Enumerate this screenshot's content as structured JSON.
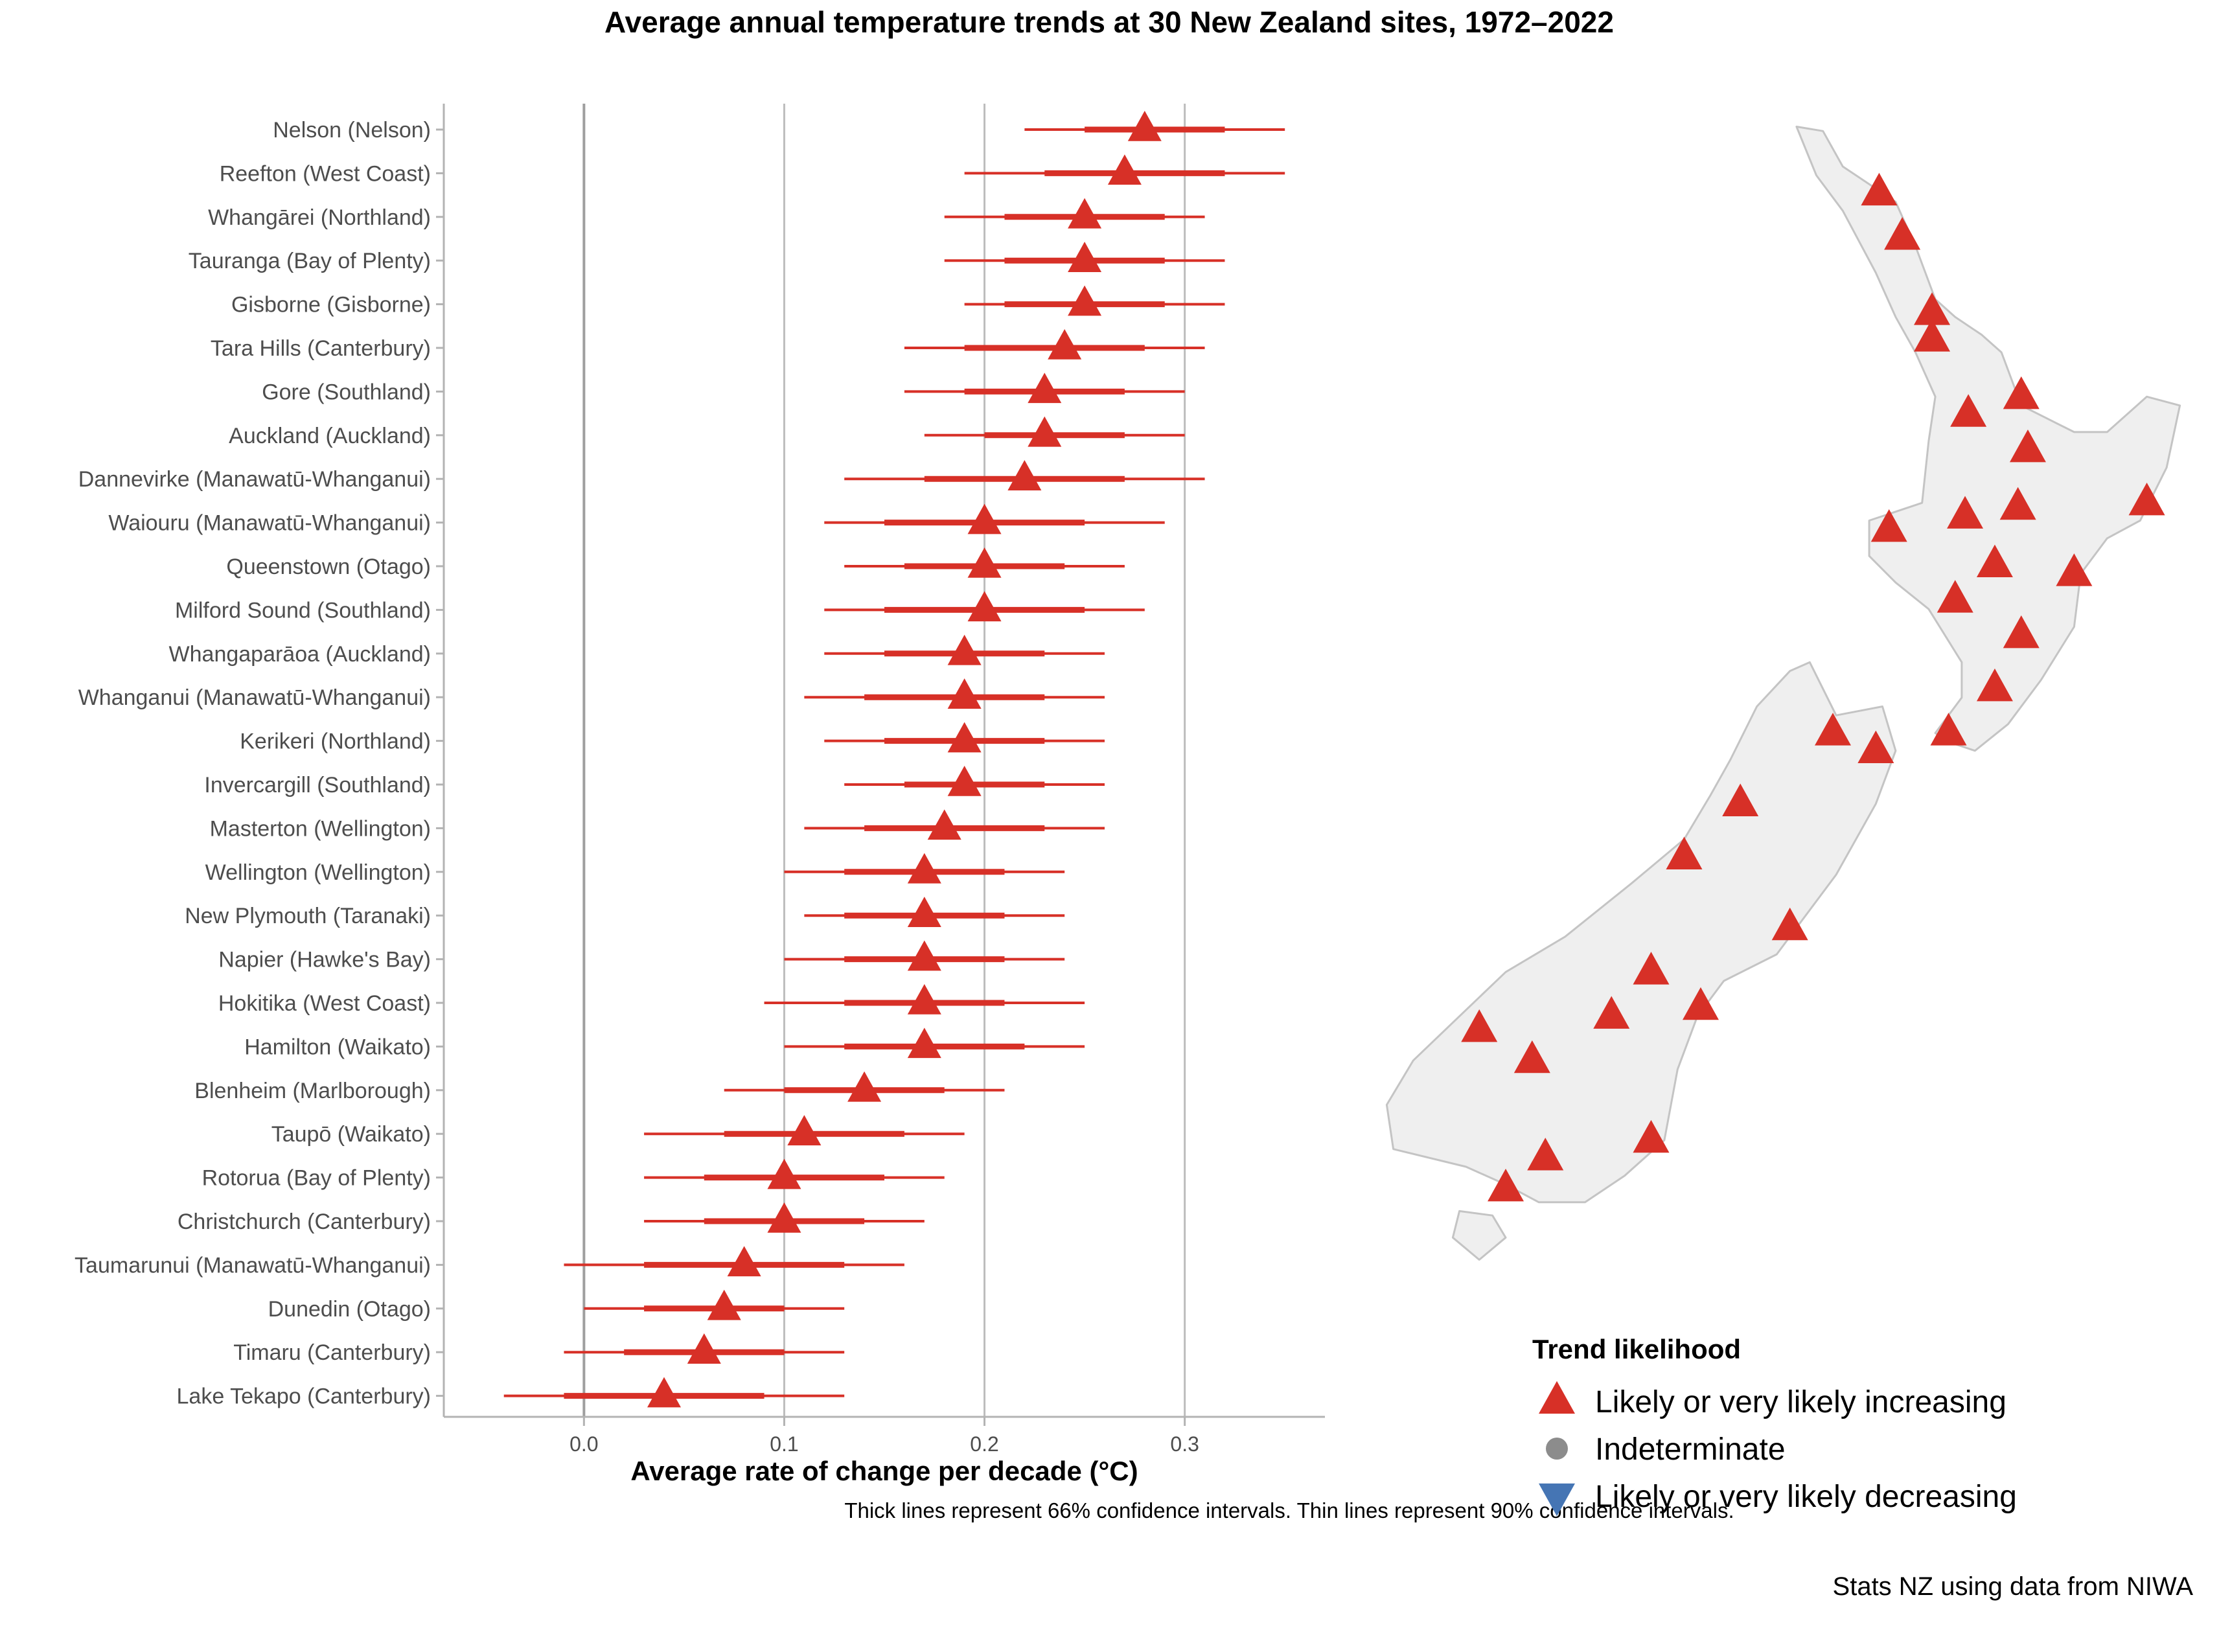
{
  "chart_data": {
    "type": "scatter",
    "title": "Average annual temperature trends at 30 New Zealand sites, 1972–2022",
    "xlabel": "Average rate of change per decade (°C)",
    "xlim": [
      -0.07,
      0.37
    ],
    "xticks": [
      "0.0",
      "0.1",
      "0.2",
      "0.3"
    ],
    "xtick_values": [
      0.0,
      0.1,
      0.2,
      0.3
    ],
    "caption": "Thick lines represent 66% confidence intervals. Thin lines represent 90% confidence intervals.",
    "grid": true,
    "colors": {
      "increasing": "#d73027",
      "indeterminate": "#8c8c8c",
      "decreasing": "#4575b4",
      "grid": "#bdbdbd",
      "map_fill": "#efefef",
      "map_stroke": "#c4c4c4"
    },
    "sites": [
      {
        "label": "Nelson (Nelson)",
        "trend": 0.28,
        "ci66": [
          0.25,
          0.32
        ],
        "ci90": [
          0.22,
          0.35
        ],
        "likelihood": "increasing"
      },
      {
        "label": "Reefton (West Coast)",
        "trend": 0.27,
        "ci66": [
          0.23,
          0.32
        ],
        "ci90": [
          0.19,
          0.35
        ],
        "likelihood": "increasing"
      },
      {
        "label": "Whangārei (Northland)",
        "trend": 0.25,
        "ci66": [
          0.21,
          0.29
        ],
        "ci90": [
          0.18,
          0.31
        ],
        "likelihood": "increasing"
      },
      {
        "label": "Tauranga (Bay of Plenty)",
        "trend": 0.25,
        "ci66": [
          0.21,
          0.29
        ],
        "ci90": [
          0.18,
          0.32
        ],
        "likelihood": "increasing"
      },
      {
        "label": "Gisborne (Gisborne)",
        "trend": 0.25,
        "ci66": [
          0.21,
          0.29
        ],
        "ci90": [
          0.19,
          0.32
        ],
        "likelihood": "increasing"
      },
      {
        "label": "Tara Hills (Canterbury)",
        "trend": 0.24,
        "ci66": [
          0.19,
          0.28
        ],
        "ci90": [
          0.16,
          0.31
        ],
        "likelihood": "increasing"
      },
      {
        "label": "Gore (Southland)",
        "trend": 0.23,
        "ci66": [
          0.19,
          0.27
        ],
        "ci90": [
          0.16,
          0.3
        ],
        "likelihood": "increasing"
      },
      {
        "label": "Auckland (Auckland)",
        "trend": 0.23,
        "ci66": [
          0.2,
          0.27
        ],
        "ci90": [
          0.17,
          0.3
        ],
        "likelihood": "increasing"
      },
      {
        "label": "Dannevirke (Manawatū-Whanganui)",
        "trend": 0.22,
        "ci66": [
          0.17,
          0.27
        ],
        "ci90": [
          0.13,
          0.31
        ],
        "likelihood": "increasing"
      },
      {
        "label": "Waiouru (Manawatū-Whanganui)",
        "trend": 0.2,
        "ci66": [
          0.15,
          0.25
        ],
        "ci90": [
          0.12,
          0.29
        ],
        "likelihood": "increasing"
      },
      {
        "label": "Queenstown (Otago)",
        "trend": 0.2,
        "ci66": [
          0.16,
          0.24
        ],
        "ci90": [
          0.13,
          0.27
        ],
        "likelihood": "increasing"
      },
      {
        "label": "Milford Sound (Southland)",
        "trend": 0.2,
        "ci66": [
          0.15,
          0.25
        ],
        "ci90": [
          0.12,
          0.28
        ],
        "likelihood": "increasing"
      },
      {
        "label": "Whangaparāoa (Auckland)",
        "trend": 0.19,
        "ci66": [
          0.15,
          0.23
        ],
        "ci90": [
          0.12,
          0.26
        ],
        "likelihood": "increasing"
      },
      {
        "label": "Whanganui (Manawatū-Whanganui)",
        "trend": 0.19,
        "ci66": [
          0.14,
          0.23
        ],
        "ci90": [
          0.11,
          0.26
        ],
        "likelihood": "increasing"
      },
      {
        "label": "Kerikeri (Northland)",
        "trend": 0.19,
        "ci66": [
          0.15,
          0.23
        ],
        "ci90": [
          0.12,
          0.26
        ],
        "likelihood": "increasing"
      },
      {
        "label": "Invercargill (Southland)",
        "trend": 0.19,
        "ci66": [
          0.16,
          0.23
        ],
        "ci90": [
          0.13,
          0.26
        ],
        "likelihood": "increasing"
      },
      {
        "label": "Masterton (Wellington)",
        "trend": 0.18,
        "ci66": [
          0.14,
          0.23
        ],
        "ci90": [
          0.11,
          0.26
        ],
        "likelihood": "increasing"
      },
      {
        "label": "Wellington (Wellington)",
        "trend": 0.17,
        "ci66": [
          0.13,
          0.21
        ],
        "ci90": [
          0.1,
          0.24
        ],
        "likelihood": "increasing"
      },
      {
        "label": "New Plymouth (Taranaki)",
        "trend": 0.17,
        "ci66": [
          0.13,
          0.21
        ],
        "ci90": [
          0.11,
          0.24
        ],
        "likelihood": "increasing"
      },
      {
        "label": "Napier (Hawke's Bay)",
        "trend": 0.17,
        "ci66": [
          0.13,
          0.21
        ],
        "ci90": [
          0.1,
          0.24
        ],
        "likelihood": "increasing"
      },
      {
        "label": "Hokitika (West Coast)",
        "trend": 0.17,
        "ci66": [
          0.13,
          0.21
        ],
        "ci90": [
          0.09,
          0.25
        ],
        "likelihood": "increasing"
      },
      {
        "label": "Hamilton (Waikato)",
        "trend": 0.17,
        "ci66": [
          0.13,
          0.22
        ],
        "ci90": [
          0.1,
          0.25
        ],
        "likelihood": "increasing"
      },
      {
        "label": "Blenheim (Marlborough)",
        "trend": 0.14,
        "ci66": [
          0.1,
          0.18
        ],
        "ci90": [
          0.07,
          0.21
        ],
        "likelihood": "increasing"
      },
      {
        "label": "Taupō (Waikato)",
        "trend": 0.11,
        "ci66": [
          0.07,
          0.16
        ],
        "ci90": [
          0.03,
          0.19
        ],
        "likelihood": "increasing"
      },
      {
        "label": "Rotorua (Bay of Plenty)",
        "trend": 0.1,
        "ci66": [
          0.06,
          0.15
        ],
        "ci90": [
          0.03,
          0.18
        ],
        "likelihood": "increasing"
      },
      {
        "label": "Christchurch (Canterbury)",
        "trend": 0.1,
        "ci66": [
          0.06,
          0.14
        ],
        "ci90": [
          0.03,
          0.17
        ],
        "likelihood": "increasing"
      },
      {
        "label": "Taumarunui (Manawatū-Whanganui)",
        "trend": 0.08,
        "ci66": [
          0.03,
          0.13
        ],
        "ci90": [
          -0.01,
          0.16
        ],
        "likelihood": "increasing"
      },
      {
        "label": "Dunedin (Otago)",
        "trend": 0.07,
        "ci66": [
          0.03,
          0.1
        ],
        "ci90": [
          0.0,
          0.13
        ],
        "likelihood": "increasing"
      },
      {
        "label": "Timaru (Canterbury)",
        "trend": 0.06,
        "ci66": [
          0.02,
          0.1
        ],
        "ci90": [
          -0.01,
          0.13
        ],
        "likelihood": "increasing"
      },
      {
        "label": "Lake Tekapo (Canterbury)",
        "trend": 0.04,
        "ci66": [
          -0.01,
          0.09
        ],
        "ci90": [
          -0.04,
          0.13
        ],
        "likelihood": "increasing"
      }
    ],
    "map": {
      "projection": "lon-lat",
      "lon_range": [
        166.3,
        178.7
      ],
      "lat_range": [
        -47.4,
        -34.3
      ],
      "north_island_outline": [
        [
          172.7,
          -34.45
        ],
        [
          173.1,
          -34.5
        ],
        [
          173.4,
          -34.9
        ],
        [
          174.2,
          -35.3
        ],
        [
          174.5,
          -35.8
        ],
        [
          174.8,
          -36.4
        ],
        [
          175.1,
          -36.6
        ],
        [
          175.5,
          -36.8
        ],
        [
          175.8,
          -37.0
        ],
        [
          176.1,
          -37.6
        ],
        [
          176.9,
          -37.9
        ],
        [
          177.4,
          -37.9
        ],
        [
          178.0,
          -37.5
        ],
        [
          178.5,
          -37.6
        ],
        [
          178.3,
          -38.3
        ],
        [
          177.9,
          -38.9
        ],
        [
          177.4,
          -39.1
        ],
        [
          177.0,
          -39.5
        ],
        [
          176.9,
          -40.1
        ],
        [
          176.4,
          -40.7
        ],
        [
          175.9,
          -41.2
        ],
        [
          175.4,
          -41.5
        ],
        [
          175.0,
          -41.4
        ],
        [
          174.8,
          -41.3
        ],
        [
          175.2,
          -40.9
        ],
        [
          175.2,
          -40.5
        ],
        [
          174.7,
          -39.9
        ],
        [
          174.2,
          -39.6
        ],
        [
          173.8,
          -39.3
        ],
        [
          173.8,
          -38.9
        ],
        [
          174.6,
          -38.7
        ],
        [
          174.7,
          -38.0
        ],
        [
          174.8,
          -37.5
        ],
        [
          174.5,
          -37.0
        ],
        [
          174.2,
          -36.6
        ],
        [
          173.9,
          -36.1
        ],
        [
          173.4,
          -35.4
        ],
        [
          173.0,
          -35.0
        ],
        [
          172.7,
          -34.45
        ]
      ],
      "south_island_outline": [
        [
          172.9,
          -40.5
        ],
        [
          173.3,
          -41.1
        ],
        [
          174.0,
          -41.0
        ],
        [
          174.2,
          -41.5
        ],
        [
          173.9,
          -42.1
        ],
        [
          173.3,
          -42.9
        ],
        [
          172.8,
          -43.4
        ],
        [
          172.4,
          -43.8
        ],
        [
          171.6,
          -44.1
        ],
        [
          171.2,
          -44.5
        ],
        [
          170.9,
          -45.1
        ],
        [
          170.7,
          -45.9
        ],
        [
          170.1,
          -46.3
        ],
        [
          169.5,
          -46.6
        ],
        [
          168.8,
          -46.6
        ],
        [
          168.3,
          -46.4
        ],
        [
          167.7,
          -46.2
        ],
        [
          166.6,
          -46.0
        ],
        [
          166.5,
          -45.5
        ],
        [
          166.9,
          -45.0
        ],
        [
          167.6,
          -44.5
        ],
        [
          168.3,
          -44.0
        ],
        [
          169.2,
          -43.6
        ],
        [
          170.2,
          -43.0
        ],
        [
          171.0,
          -42.5
        ],
        [
          171.4,
          -42.0
        ],
        [
          171.7,
          -41.6
        ],
        [
          172.1,
          -41.0
        ],
        [
          172.6,
          -40.6
        ],
        [
          172.9,
          -40.5
        ]
      ],
      "stewart_island_outline": [
        [
          167.6,
          -46.7
        ],
        [
          168.1,
          -46.75
        ],
        [
          168.3,
          -47.0
        ],
        [
          167.9,
          -47.25
        ],
        [
          167.5,
          -47.0
        ],
        [
          167.6,
          -46.7
        ]
      ],
      "markers": [
        {
          "label": "Kerikeri (Northland)",
          "lon": 173.95,
          "lat": -35.2
        },
        {
          "label": "Whangārei (Northland)",
          "lon": 174.3,
          "lat": -35.7
        },
        {
          "label": "Whangaparāoa (Auckland)",
          "lon": 174.75,
          "lat": -36.55
        },
        {
          "label": "Auckland (Auckland)",
          "lon": 174.75,
          "lat": -36.85
        },
        {
          "label": "Hamilton (Waikato)",
          "lon": 175.3,
          "lat": -37.7
        },
        {
          "label": "Tauranga (Bay of Plenty)",
          "lon": 176.1,
          "lat": -37.5
        },
        {
          "label": "Rotorua (Bay of Plenty)",
          "lon": 176.2,
          "lat": -38.1
        },
        {
          "label": "Gisborne (Gisborne)",
          "lon": 178.0,
          "lat": -38.7
        },
        {
          "label": "Taumarunui (Manawatū-Whanganui)",
          "lon": 175.25,
          "lat": -38.85
        },
        {
          "label": "Taupō (Waikato)",
          "lon": 176.05,
          "lat": -38.75
        },
        {
          "label": "New Plymouth (Taranaki)",
          "lon": 174.1,
          "lat": -39.0
        },
        {
          "label": "Waiouru (Manawatū-Whanganui)",
          "lon": 175.7,
          "lat": -39.4
        },
        {
          "label": "Napier (Hawke's Bay)",
          "lon": 176.9,
          "lat": -39.5
        },
        {
          "label": "Whanganui (Manawatū-Whanganui)",
          "lon": 175.1,
          "lat": -39.8
        },
        {
          "label": "Dannevirke (Manawatū-Whanganui)",
          "lon": 176.1,
          "lat": -40.2
        },
        {
          "label": "Masterton (Wellington)",
          "lon": 175.7,
          "lat": -40.8
        },
        {
          "label": "Wellington (Wellington)",
          "lon": 175.0,
          "lat": -41.3
        },
        {
          "label": "Nelson (Nelson)",
          "lon": 173.25,
          "lat": -41.3
        },
        {
          "label": "Blenheim (Marlborough)",
          "lon": 173.9,
          "lat": -41.5
        },
        {
          "label": "Reefton (West Coast)",
          "lon": 171.85,
          "lat": -42.1
        },
        {
          "label": "Hokitika (West Coast)",
          "lon": 171.0,
          "lat": -42.7
        },
        {
          "label": "Christchurch (Canterbury)",
          "lon": 172.6,
          "lat": -43.5
        },
        {
          "label": "Lake Tekapo (Canterbury)",
          "lon": 170.5,
          "lat": -44.0
        },
        {
          "label": "Timaru (Canterbury)",
          "lon": 171.25,
          "lat": -44.4
        },
        {
          "label": "Tara Hills (Canterbury)",
          "lon": 169.9,
          "lat": -44.5
        },
        {
          "label": "Milford Sound (Southland)",
          "lon": 167.9,
          "lat": -44.65
        },
        {
          "label": "Queenstown (Otago)",
          "lon": 168.7,
          "lat": -45.0
        },
        {
          "label": "Dunedin (Otago)",
          "lon": 170.5,
          "lat": -45.9
        },
        {
          "label": "Gore (Southland)",
          "lon": 168.9,
          "lat": -46.1
        },
        {
          "label": "Invercargill (Southland)",
          "lon": 168.3,
          "lat": -46.45
        }
      ]
    },
    "legend": {
      "title": "Trend likelihood",
      "placement": "bottom-right",
      "items": [
        {
          "label": "Likely or very likely increasing",
          "shape": "triangle-up",
          "color": "#d73027"
        },
        {
          "label": "Indeterminate",
          "shape": "circle",
          "color": "#8c8c8c"
        },
        {
          "label": "Likely or very likely decreasing",
          "shape": "triangle-down",
          "color": "#4575b4"
        }
      ]
    },
    "source": "Stats NZ using data from NIWA"
  }
}
